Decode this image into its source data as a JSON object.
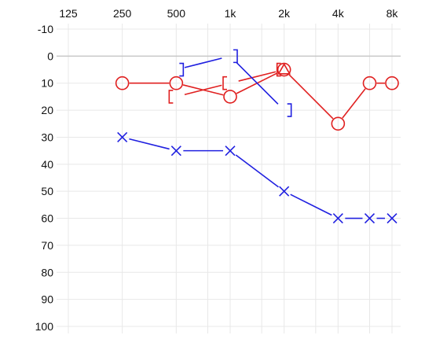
{
  "chart_data": {
    "type": "line",
    "x_axis": {
      "scale": "log2",
      "position": "top",
      "tick_labels": [
        "125",
        "250",
        "500",
        "1k",
        "2k",
        "4k",
        "8k"
      ],
      "ticks": [
        125,
        250,
        500,
        1000,
        2000,
        4000,
        8000
      ],
      "minor_ticks": [
        750,
        1500,
        3000,
        6000
      ]
    },
    "y_axis": {
      "inverted": true,
      "ylim": [
        -10,
        100
      ],
      "ticks": [
        -10,
        0,
        10,
        20,
        30,
        40,
        50,
        60,
        70,
        80,
        90,
        100
      ],
      "tick_labels": [
        "-10",
        "0",
        "10",
        "20",
        "30",
        "40",
        "50",
        "60",
        "70",
        "80",
        "90",
        "100"
      ]
    },
    "grid": true,
    "reference_line_y": 0,
    "series": [
      {
        "key": "right_air",
        "color": "#e02020",
        "marker": "circle",
        "points": [
          [
            250,
            10
          ],
          [
            500,
            10
          ],
          [
            1000,
            15
          ],
          [
            2000,
            5
          ],
          [
            4000,
            25
          ],
          [
            6000,
            10
          ],
          [
            8000,
            10
          ]
        ]
      },
      {
        "key": "right_bone",
        "color": "#e02020",
        "marker": "bracket-left",
        "points": [
          [
            500,
            15
          ],
          [
            1000,
            10
          ],
          [
            2000,
            5
          ]
        ]
      },
      {
        "key": "right_marker",
        "color": "#e02020",
        "marker": "triangle",
        "points": [
          [
            2000,
            5
          ]
        ]
      },
      {
        "key": "left_air",
        "color": "#2020e0",
        "marker": "x",
        "points": [
          [
            250,
            30
          ],
          [
            500,
            35
          ],
          [
            1000,
            35
          ],
          [
            2000,
            50
          ],
          [
            4000,
            60
          ],
          [
            6000,
            60
          ],
          [
            8000,
            60
          ]
        ]
      },
      {
        "key": "left_bone",
        "color": "#2020e0",
        "marker": "bracket-right",
        "points": [
          [
            500,
            5
          ],
          [
            1000,
            0
          ],
          [
            2000,
            20
          ]
        ]
      }
    ]
  }
}
